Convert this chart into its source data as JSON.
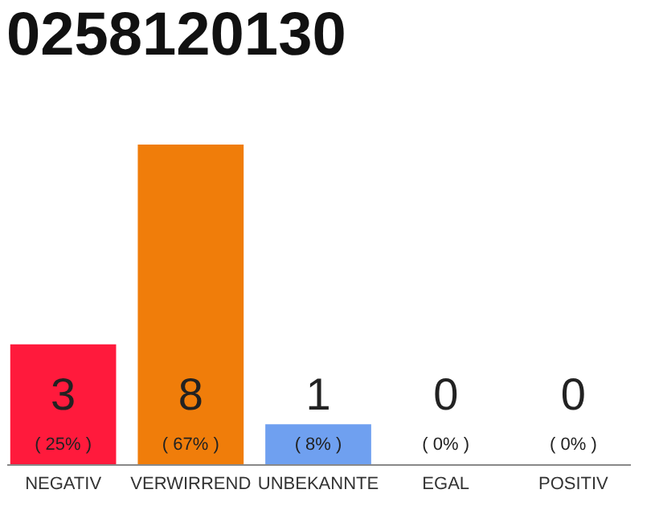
{
  "chart_data": {
    "type": "bar",
    "title": "0258120130",
    "categories": [
      "NEGATIV",
      "VERWIRREND",
      "UNBEKANNTE",
      "EGAL",
      "POSITIV"
    ],
    "values": [
      3,
      8,
      1,
      0,
      0
    ],
    "colors": [
      "#ff1a3c",
      "#f07d0a",
      "#6fa0f0",
      "#cccccc",
      "#cccccc"
    ],
    "ylim": [
      0,
      8
    ],
    "data_labels": true,
    "tick_labels": "x",
    "annotations": [
      "( 25% )",
      "( 67% )",
      "( 8% )",
      "( 0% )",
      "( 0% )"
    ]
  }
}
